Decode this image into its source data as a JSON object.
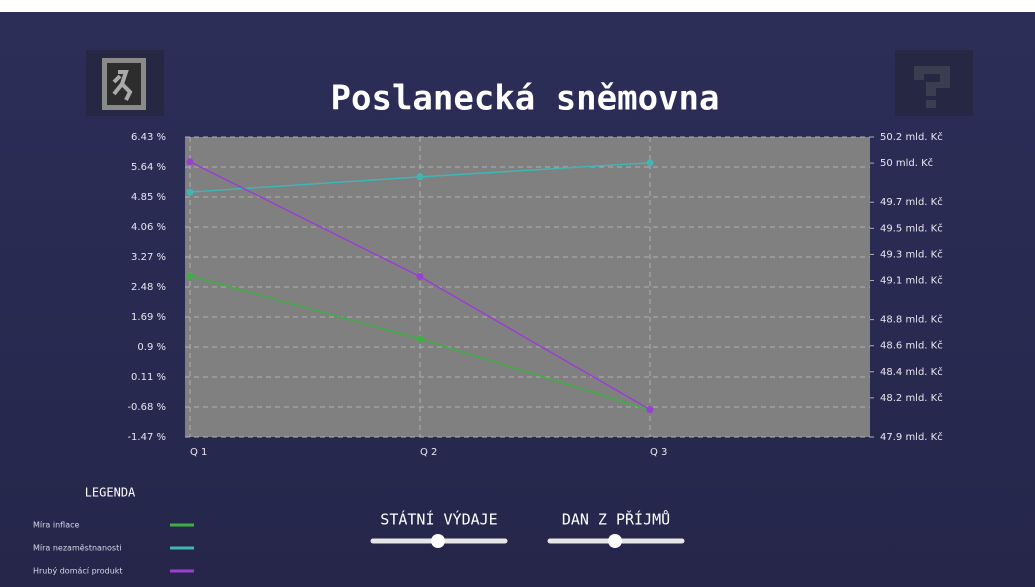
{
  "chart_data": {
    "type": "line",
    "title": "Poslanecká sněmovna",
    "categories": [
      "Q 1",
      "Q 2",
      "Q 3"
    ],
    "ylim": [
      -1.47,
      6.43
    ],
    "yticks": [
      {
        "value": -1.47,
        "label": "-1.47 %"
      },
      {
        "value": -0.68,
        "label": "-0.68 %"
      },
      {
        "value": 0.11,
        "label": "0.11 %"
      },
      {
        "value": 0.9,
        "label": "0.9 %"
      },
      {
        "value": 1.69,
        "label": "1.69 %"
      },
      {
        "value": 2.48,
        "label": "2.48 %"
      },
      {
        "value": 3.27,
        "label": "3.27 %"
      },
      {
        "value": 4.06,
        "label": "4.06 %"
      },
      {
        "value": 4.85,
        "label": "4.85 %"
      },
      {
        "value": 5.64,
        "label": "5.64 %"
      },
      {
        "value": 6.43,
        "label": "6.43 %"
      }
    ],
    "y2lim": [
      47.9,
      50.2
    ],
    "y2ticks": [
      {
        "value": 47.9,
        "label": "47.9 mld. Kč"
      },
      {
        "value": 48.2,
        "label": "48.2 mld. Kč"
      },
      {
        "value": 48.4,
        "label": "48.4 mld. Kč"
      },
      {
        "value": 48.6,
        "label": "48.6 mld. Kč"
      },
      {
        "value": 48.8,
        "label": "48.8 mld. Kč"
      },
      {
        "value": 49.1,
        "label": "49.1 mld. Kč"
      },
      {
        "value": 49.3,
        "label": "49.3 mld. Kč"
      },
      {
        "value": 49.5,
        "label": "49.5 mld. Kč"
      },
      {
        "value": 49.7,
        "label": "49.7 mld. Kč"
      },
      {
        "value": 50,
        "label": "50 mld. Kč"
      },
      {
        "value": 50.2,
        "label": "50.2 mld. Kč"
      }
    ],
    "grid": true,
    "legend_title": "LEGENDA",
    "series": [
      {
        "name": "Míra inflace",
        "color": "#3cb043",
        "values": [
          2.77,
          1.11,
          -0.76
        ]
      },
      {
        "name": "Míra nezaměstnanosti",
        "color": "#3fb5b5",
        "values": [
          4.98,
          5.38,
          5.75
        ]
      },
      {
        "name": "Hrubý domácí produkt",
        "color": "#9b3fd0",
        "axis": "y2",
        "values": [
          50.01,
          49.13,
          48.11
        ]
      }
    ]
  },
  "controls": [
    {
      "label": "STÁTNÍ VÝDAJE"
    },
    {
      "label": "DAN Z PŘÍJMŮ"
    }
  ]
}
